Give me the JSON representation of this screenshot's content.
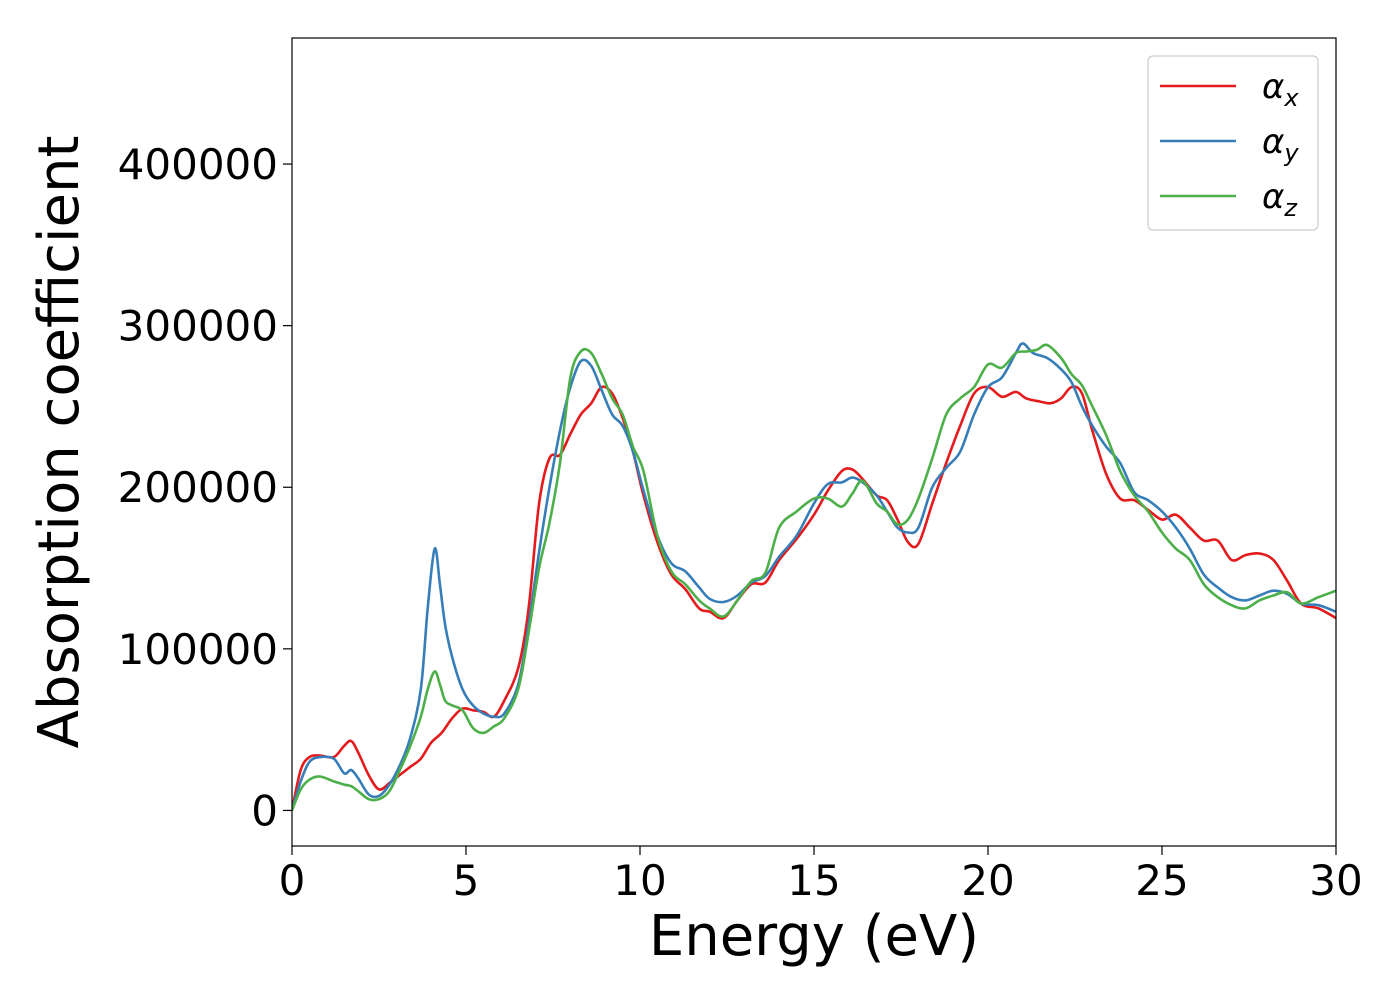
{
  "chart_data": {
    "type": "line",
    "xlabel": "Energy (eV)",
    "ylabel": "Absorption coefficient",
    "xlim": [
      0,
      30
    ],
    "ylim": [
      -22000,
      478000
    ],
    "xticks": [
      0,
      5,
      10,
      15,
      20,
      25,
      30
    ],
    "yticks": [
      0,
      100000,
      200000,
      300000,
      400000
    ],
    "grid": false,
    "legend_position": "top-right",
    "series": [
      {
        "name": "α",
        "subscript": "x",
        "color": "#e41a1c",
        "x": [
          0,
          0.25,
          0.5,
          0.8,
          1.2,
          1.5,
          1.7,
          1.9,
          2.2,
          2.5,
          2.8,
          3.1,
          3.4,
          3.7,
          4.0,
          4.3,
          4.6,
          4.9,
          5.2,
          5.5,
          5.8,
          6.1,
          6.5,
          6.8,
          7.1,
          7.4,
          7.7,
          8.0,
          8.3,
          8.6,
          8.9,
          9.2,
          9.5,
          9.8,
          10.1,
          10.5,
          10.9,
          11.3,
          11.7,
          12.0,
          12.4,
          12.8,
          13.2,
          13.6,
          14.0,
          14.5,
          15.0,
          15.4,
          15.8,
          16.1,
          16.4,
          16.8,
          17.1,
          17.4,
          17.7,
          18.0,
          18.4,
          18.8,
          19.2,
          19.6,
          20.0,
          20.4,
          20.8,
          21.1,
          21.5,
          21.8,
          22.1,
          22.4,
          22.7,
          23.0,
          23.4,
          23.8,
          24.2,
          24.6,
          25.0,
          25.4,
          25.8,
          26.2,
          26.6,
          27.0,
          27.4,
          27.8,
          28.2,
          28.6,
          29.0,
          29.5,
          30.0
        ],
        "values": [
          0,
          25000,
          33000,
          34000,
          33000,
          40000,
          43000,
          36000,
          22000,
          13000,
          17000,
          22000,
          27000,
          32000,
          42000,
          48000,
          57000,
          63000,
          62000,
          61000,
          58000,
          68000,
          88000,
          125000,
          190000,
          218000,
          220000,
          233000,
          245000,
          252000,
          262000,
          258000,
          243000,
          222000,
          195000,
          166000,
          146000,
          137000,
          125000,
          123000,
          119000,
          130000,
          140000,
          141000,
          155000,
          168000,
          183000,
          198000,
          210000,
          211000,
          205000,
          195000,
          192000,
          180000,
          166000,
          165000,
          190000,
          215000,
          238000,
          258000,
          262000,
          256000,
          259000,
          255000,
          253000,
          252000,
          255000,
          262000,
          258000,
          235000,
          208000,
          193000,
          192000,
          186000,
          180000,
          183000,
          175000,
          167000,
          167000,
          155000,
          158000,
          159000,
          155000,
          142000,
          128000,
          125000,
          119000
        ]
      },
      {
        "name": "α",
        "subscript": "y",
        "color": "#377eb8",
        "x": [
          0,
          0.25,
          0.5,
          0.8,
          1.2,
          1.5,
          1.7,
          1.9,
          2.2,
          2.5,
          2.8,
          3.1,
          3.4,
          3.7,
          3.9,
          4.1,
          4.25,
          4.4,
          4.6,
          4.9,
          5.2,
          5.5,
          5.8,
          6.1,
          6.5,
          6.8,
          7.1,
          7.4,
          7.7,
          8.0,
          8.3,
          8.6,
          8.9,
          9.2,
          9.5,
          9.8,
          10.1,
          10.5,
          10.9,
          11.3,
          11.7,
          12.0,
          12.4,
          12.8,
          13.2,
          13.6,
          14.0,
          14.5,
          15.0,
          15.4,
          15.8,
          16.1,
          16.4,
          16.8,
          17.1,
          17.4,
          17.7,
          18.0,
          18.4,
          18.8,
          19.2,
          19.6,
          20.0,
          20.4,
          20.8,
          21.0,
          21.3,
          21.7,
          22.1,
          22.4,
          22.7,
          23.0,
          23.4,
          23.8,
          24.2,
          24.6,
          25.0,
          25.4,
          25.8,
          26.2,
          26.6,
          27.0,
          27.4,
          27.8,
          28.2,
          28.6,
          29.0,
          29.5,
          30.0
        ],
        "values": [
          0,
          18000,
          30000,
          33000,
          32000,
          23000,
          25000,
          20000,
          10000,
          9000,
          16000,
          28000,
          45000,
          75000,
          125000,
          162000,
          140000,
          115000,
          95000,
          75000,
          65000,
          60000,
          58000,
          60000,
          78000,
          115000,
          160000,
          200000,
          235000,
          262000,
          278000,
          275000,
          260000,
          245000,
          238000,
          222000,
          198000,
          170000,
          153000,
          148000,
          138000,
          131000,
          129000,
          133000,
          141000,
          145000,
          157000,
          170000,
          190000,
          202000,
          203000,
          206000,
          203000,
          195000,
          185000,
          175000,
          172000,
          175000,
          200000,
          212000,
          222000,
          245000,
          262000,
          268000,
          283000,
          289000,
          283000,
          280000,
          273000,
          265000,
          250000,
          238000,
          225000,
          215000,
          197000,
          192000,
          185000,
          175000,
          162000,
          146000,
          138000,
          132000,
          130000,
          133000,
          136000,
          134000,
          128000,
          127000,
          123000
        ]
      },
      {
        "name": "α",
        "subscript": "z",
        "color": "#4daf4a",
        "x": [
          0,
          0.25,
          0.5,
          0.8,
          1.2,
          1.5,
          1.7,
          1.9,
          2.2,
          2.5,
          2.8,
          3.1,
          3.4,
          3.7,
          3.9,
          4.1,
          4.25,
          4.4,
          4.6,
          4.9,
          5.2,
          5.5,
          5.8,
          6.1,
          6.5,
          6.8,
          7.1,
          7.4,
          7.7,
          8.0,
          8.3,
          8.6,
          8.9,
          9.2,
          9.5,
          9.8,
          10.1,
          10.5,
          10.9,
          11.3,
          11.7,
          12.0,
          12.4,
          12.8,
          13.2,
          13.6,
          14.0,
          14.5,
          15.0,
          15.4,
          15.8,
          16.1,
          16.4,
          16.8,
          17.1,
          17.4,
          17.7,
          18.0,
          18.4,
          18.8,
          19.2,
          19.6,
          20.0,
          20.4,
          20.8,
          21.1,
          21.4,
          21.7,
          22.1,
          22.4,
          22.7,
          23.0,
          23.4,
          23.8,
          24.2,
          24.6,
          25.0,
          25.4,
          25.8,
          26.2,
          26.6,
          27.0,
          27.4,
          27.8,
          28.2,
          28.6,
          29.0,
          29.5,
          30.0
        ],
        "values": [
          0,
          13000,
          19000,
          21000,
          18000,
          16000,
          15000,
          12000,
          7000,
          7000,
          12000,
          25000,
          40000,
          58000,
          75000,
          86000,
          78000,
          68000,
          65000,
          62000,
          51000,
          48000,
          52000,
          57000,
          75000,
          110000,
          150000,
          178000,
          215000,
          268000,
          284000,
          283000,
          270000,
          255000,
          245000,
          225000,
          210000,
          170000,
          148000,
          140000,
          130000,
          125000,
          120000,
          130000,
          142000,
          147000,
          175000,
          185000,
          193000,
          193000,
          188000,
          196000,
          204000,
          190000,
          185000,
          177000,
          180000,
          193000,
          218000,
          245000,
          255000,
          262000,
          276000,
          274000,
          283000,
          284000,
          285000,
          288000,
          280000,
          270000,
          263000,
          250000,
          232000,
          210000,
          195000,
          185000,
          172000,
          162000,
          155000,
          140000,
          132000,
          127000,
          125000,
          130000,
          133000,
          135000,
          128000,
          132000,
          136000
        ]
      }
    ]
  }
}
